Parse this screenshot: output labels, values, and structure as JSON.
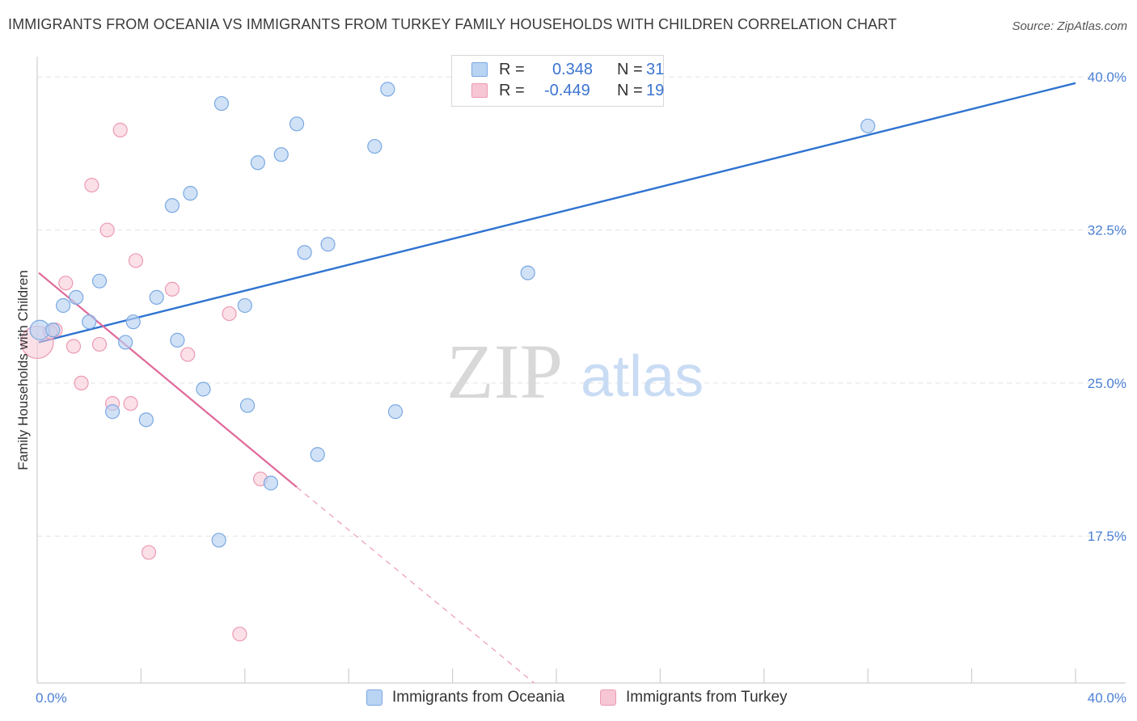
{
  "header": {
    "title": "IMMIGRANTS FROM OCEANIA VS IMMIGRANTS FROM TURKEY FAMILY HOUSEHOLDS WITH CHILDREN CORRELATION CHART",
    "source": "Source: ZipAtlas.com"
  },
  "watermark": {
    "zip": "ZIP",
    "atlas": "atlas"
  },
  "legend": {
    "oceania": {
      "r_label": "R =",
      "r_value": "0.348",
      "n_label": "N =",
      "n_value": "31"
    },
    "turkey": {
      "r_label": "R =",
      "r_value": "-0.449",
      "n_label": "N =",
      "n_value": "19"
    }
  },
  "bottom_legend": {
    "oceania": "Immigrants from Oceania",
    "turkey": "Immigrants from Turkey"
  },
  "colors": {
    "oceania_fill": "#b9d3f3",
    "oceania_stroke": "#7aa8e2",
    "oceania_line": "#2f74d0",
    "turkey_fill": "#f7c6d4",
    "turkey_stroke": "#ec9ab3",
    "turkey_line": "#e0699a",
    "tick_text": "#4a7fd4",
    "grid": "#e3e3e3"
  },
  "chart_data": {
    "type": "scatter",
    "title": "IMMIGRANTS FROM OCEANIA VS IMMIGRANTS FROM TURKEY FAMILY HOUSEHOLDS WITH CHILDREN CORRELATION CHART",
    "xlabel": "",
    "ylabel": "Family Households with Children",
    "xlim": [
      0,
      40
    ],
    "ylim": [
      10.3,
      41.0
    ],
    "x_tick_labels": [
      "0.0%",
      "40.0%"
    ],
    "y_ticks": [
      17.5,
      25.0,
      32.5,
      40.0
    ],
    "y_tick_labels": [
      "17.5%",
      "25.0%",
      "32.5%",
      "40.0%"
    ],
    "grid": true,
    "series": [
      {
        "name": "Immigrants from Oceania",
        "points": [
          [
            0.1,
            27.6
          ],
          [
            0.6,
            27.6
          ],
          [
            1.0,
            28.8
          ],
          [
            1.5,
            29.2
          ],
          [
            2.0,
            28.0
          ],
          [
            2.4,
            30.0
          ],
          [
            2.9,
            23.6
          ],
          [
            3.4,
            27.0
          ],
          [
            3.7,
            28.0
          ],
          [
            4.2,
            23.2
          ],
          [
            4.6,
            29.2
          ],
          [
            5.2,
            33.7
          ],
          [
            5.4,
            27.1
          ],
          [
            5.9,
            34.3
          ],
          [
            6.4,
            24.7
          ],
          [
            7.0,
            17.3
          ],
          [
            7.1,
            38.7
          ],
          [
            8.0,
            28.8
          ],
          [
            8.1,
            23.9
          ],
          [
            8.5,
            35.8
          ],
          [
            9.0,
            20.1
          ],
          [
            9.4,
            36.2
          ],
          [
            10.0,
            37.7
          ],
          [
            10.3,
            31.4
          ],
          [
            10.8,
            21.5
          ],
          [
            11.2,
            31.8
          ],
          [
            13.0,
            36.6
          ],
          [
            13.5,
            39.4
          ],
          [
            13.8,
            23.6
          ],
          [
            18.9,
            30.4
          ],
          [
            32.0,
            37.6
          ]
        ],
        "trend": {
          "x": [
            0.0,
            40.0
          ],
          "y": [
            27.0,
            39.7
          ]
        }
      },
      {
        "name": "Immigrants from Turkey",
        "points": [
          [
            0.0,
            27.0
          ],
          [
            0.7,
            27.6
          ],
          [
            1.1,
            29.9
          ],
          [
            1.4,
            26.8
          ],
          [
            1.7,
            25.0
          ],
          [
            2.1,
            34.7
          ],
          [
            2.4,
            26.9
          ],
          [
            2.7,
            32.5
          ],
          [
            2.9,
            24.0
          ],
          [
            3.2,
            37.4
          ],
          [
            3.6,
            24.0
          ],
          [
            3.8,
            31.0
          ],
          [
            4.3,
            16.7
          ],
          [
            5.2,
            29.6
          ],
          [
            5.8,
            26.4
          ],
          [
            7.4,
            28.4
          ],
          [
            7.8,
            12.7
          ],
          [
            8.6,
            20.3
          ],
          [
            0.5,
            27.5
          ]
        ],
        "trend": {
          "x": [
            0.0,
            10.0
          ],
          "y": [
            30.4,
            19.9
          ]
        },
        "trend_dashed": {
          "x": [
            10.0,
            20.0
          ],
          "y": [
            19.9,
            9.4
          ]
        }
      }
    ]
  }
}
